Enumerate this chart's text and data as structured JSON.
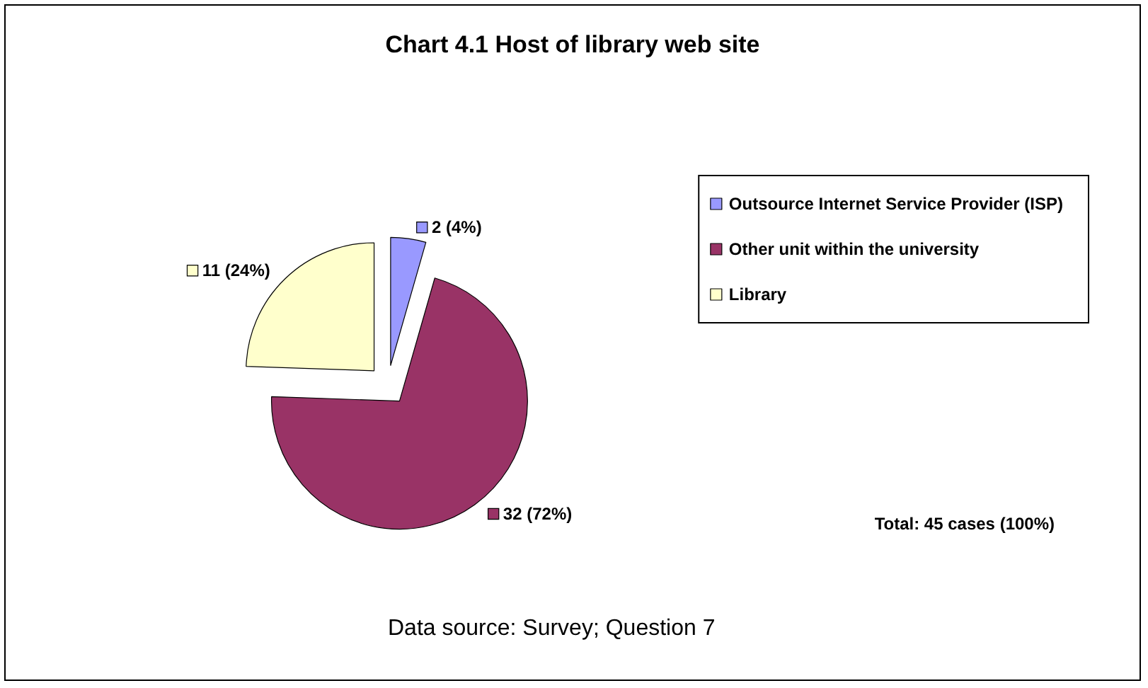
{
  "chart_data": {
    "type": "pie",
    "title": "Chart 4.1 Host of library web site",
    "categories": [
      "Outsource Internet Service Provider (ISP)",
      "Other unit within the university",
      "Library"
    ],
    "values": [
      2,
      32,
      11
    ],
    "value_labels": [
      "2 (4%)",
      "32 (72%)",
      "11 (24%)"
    ],
    "colors": [
      "#9999ff",
      "#993366",
      "#ffffcc"
    ],
    "legend": "right",
    "annotations": [
      "Total: 45 cases (100%)",
      "Data source: Survey; Question 7"
    ]
  }
}
